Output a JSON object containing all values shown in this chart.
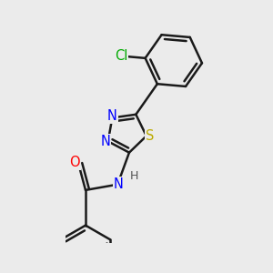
{
  "bg_color": "#ebebeb",
  "bond_color": "#1a1a1a",
  "bond_width": 1.8,
  "atom_colors": {
    "N": "#0000ff",
    "O": "#ff0000",
    "S": "#bbaa00",
    "Cl": "#00aa00",
    "C": "#1a1a1a",
    "H": "#555555"
  },
  "font_size_atoms": 10.5,
  "font_size_H": 9.0
}
